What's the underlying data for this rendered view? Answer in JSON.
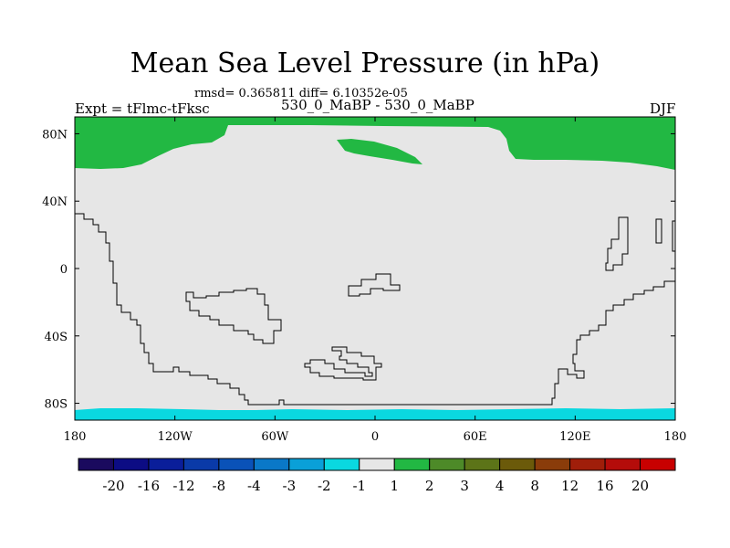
{
  "header": {
    "title": "Mean Sea Level Pressure (in hPa)",
    "stats": "rmsd= 0.365811 diff= 6.10352e-05",
    "expt_label": "Expt = tFlmc-tFksc",
    "experiment_name": "530_0_MaBP - 530_0_MaBP",
    "season": "DJF"
  },
  "chart_data": {
    "type": "heatmap",
    "title": "Mean Sea Level Pressure (in hPa)",
    "xlabel": "",
    "ylabel": "",
    "xlim": [
      -180,
      180
    ],
    "ylim": [
      -90,
      90
    ],
    "x_ticks": [
      {
        "value": -180,
        "label": "180"
      },
      {
        "value": -120,
        "label": "120W"
      },
      {
        "value": -60,
        "label": "60W"
      },
      {
        "value": 0,
        "label": "0"
      },
      {
        "value": 60,
        "label": "60E"
      },
      {
        "value": 120,
        "label": "120E"
      },
      {
        "value": 180,
        "label": "180"
      }
    ],
    "y_ticks": [
      {
        "value": 80,
        "label": "80N"
      },
      {
        "value": 40,
        "label": "40N"
      },
      {
        "value": 0,
        "label": "0"
      },
      {
        "value": -40,
        "label": "40S"
      },
      {
        "value": -80,
        "label": "80S"
      }
    ],
    "levels": [
      "-20",
      "-16",
      "-12",
      "-8",
      "-4",
      "-3",
      "-2",
      "-1",
      "1",
      "2",
      "3",
      "4",
      "8",
      "12",
      "16",
      "20"
    ],
    "colors": [
      "#1a0a5e",
      "#0c0c84",
      "#0a1e9a",
      "#0a3aa8",
      "#0a52b8",
      "#0a78c8",
      "#0aa0d8",
      "#0ad8e0",
      "#e6e6e6",
      "#22b843",
      "#4d8a28",
      "#5c7418",
      "#6b5a0a",
      "#8a3c0a",
      "#a01e0a",
      "#b40c0a",
      "#c80000"
    ],
    "background_class": "-1 to 1",
    "regions": [
      {
        "class": "1 to 2",
        "area": "northern high latitudes (north of ~60N)"
      },
      {
        "class": "1 to 2",
        "area": "band near 70N, 20W-30E"
      },
      {
        "class": "-2 to -1",
        "area": "southern margin near 85S"
      }
    ]
  }
}
